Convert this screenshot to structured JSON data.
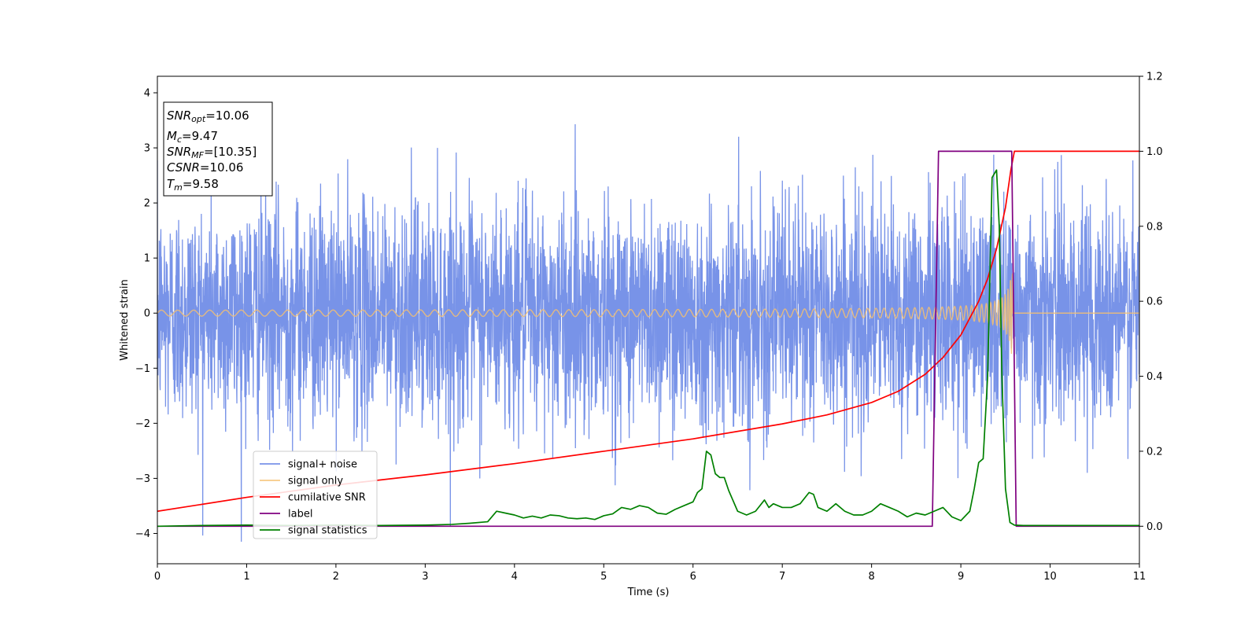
{
  "chart_data": {
    "type": "line",
    "xlabel": "Time (s)",
    "ylabel": "Whitened strain",
    "xlim": [
      0,
      11
    ],
    "ylim": [
      -4.55,
      4.3
    ],
    "y2lim": [
      -0.1,
      1.2
    ],
    "xticks": [
      "0",
      "1",
      "2",
      "3",
      "4",
      "5",
      "6",
      "7",
      "8",
      "9",
      "10",
      "11"
    ],
    "yticks": [
      "4",
      "3",
      "2",
      "1",
      "0",
      "−1",
      "−2",
      "−3",
      "−4"
    ],
    "y2ticks": [
      "0.0",
      "0.2",
      "0.4",
      "0.6",
      "0.8",
      "1.0",
      "1.2"
    ],
    "grid": false,
    "legend_position": "lower-left",
    "annotation": {
      "snr_opt": {
        "base": "SNR",
        "sub": "opt",
        "value": "=10.06"
      },
      "mc": {
        "base": "M",
        "sub": "c",
        "value": "=9.47"
      },
      "snr_mf": {
        "base": "SNR",
        "sub": "MF",
        "value": "=[10.35]"
      },
      "csnr": {
        "base": "CSNR",
        "sub": "",
        "value": "=10.06"
      },
      "tm": {
        "base": "T",
        "sub": "m",
        "value": "=9.58"
      }
    },
    "series": [
      {
        "name": "signal+ noise",
        "color": "#7893e8",
        "axis": "left",
        "kind": "noise",
        "sigma": 1.0,
        "t_end": 11
      },
      {
        "name": "signal only",
        "color": "#f5c070",
        "axis": "left",
        "kind": "chirp",
        "t_merge": 9.58,
        "amplitude_end": 0.75
      },
      {
        "name": "cumilative SNR",
        "color": "#ff0000",
        "axis": "right",
        "x": [
          0,
          1,
          2,
          3,
          4,
          5,
          6,
          7,
          7.5,
          8,
          8.3,
          8.6,
          8.8,
          9.0,
          9.2,
          9.3,
          9.4,
          9.5,
          9.56,
          9.6,
          11
        ],
        "y": [
          0.04,
          0.077,
          0.11,
          0.137,
          0.167,
          0.2,
          0.233,
          0.273,
          0.297,
          0.33,
          0.36,
          0.405,
          0.45,
          0.51,
          0.6,
          0.66,
          0.74,
          0.85,
          0.95,
          1.0,
          1.0
        ]
      },
      {
        "name": "label",
        "color": "#800080",
        "axis": "right",
        "x": [
          0,
          8.68,
          8.75,
          9.57,
          9.62,
          11
        ],
        "y": [
          0,
          0,
          1,
          1,
          0,
          0
        ]
      },
      {
        "name": "signal statistics",
        "color": "#008000",
        "axis": "right",
        "x": [
          0,
          0.5,
          1,
          1.5,
          2,
          2.5,
          3,
          3.3,
          3.5,
          3.7,
          3.8,
          3.9,
          4.0,
          4.1,
          4.2,
          4.3,
          4.4,
          4.5,
          4.6,
          4.7,
          4.8,
          4.9,
          5.0,
          5.1,
          5.2,
          5.3,
          5.4,
          5.5,
          5.6,
          5.7,
          5.8,
          5.9,
          6.0,
          6.05,
          6.1,
          6.15,
          6.2,
          6.25,
          6.3,
          6.35,
          6.4,
          6.5,
          6.6,
          6.7,
          6.8,
          6.85,
          6.9,
          7.0,
          7.1,
          7.2,
          7.3,
          7.35,
          7.4,
          7.5,
          7.6,
          7.7,
          7.8,
          7.9,
          8.0,
          8.1,
          8.2,
          8.3,
          8.4,
          8.5,
          8.6,
          8.7,
          8.8,
          8.9,
          9.0,
          9.1,
          9.15,
          9.2,
          9.25,
          9.3,
          9.35,
          9.4,
          9.43,
          9.46,
          9.5,
          9.55,
          9.6,
          9.7,
          11
        ],
        "y": [
          0,
          0.002,
          0.003,
          0.002,
          0.003,
          0.002,
          0.003,
          0.005,
          0.008,
          0.012,
          0.04,
          0.035,
          0.03,
          0.022,
          0.027,
          0.022,
          0.03,
          0.028,
          0.022,
          0.02,
          0.022,
          0.018,
          0.028,
          0.033,
          0.05,
          0.045,
          0.055,
          0.05,
          0.035,
          0.032,
          0.045,
          0.055,
          0.065,
          0.09,
          0.1,
          0.2,
          0.19,
          0.14,
          0.13,
          0.13,
          0.095,
          0.04,
          0.03,
          0.04,
          0.07,
          0.05,
          0.06,
          0.05,
          0.05,
          0.06,
          0.09,
          0.085,
          0.05,
          0.04,
          0.06,
          0.04,
          0.03,
          0.03,
          0.04,
          0.06,
          0.05,
          0.04,
          0.025,
          0.035,
          0.03,
          0.04,
          0.05,
          0.025,
          0.015,
          0.04,
          0.1,
          0.17,
          0.18,
          0.4,
          0.93,
          0.95,
          0.8,
          0.4,
          0.1,
          0.01,
          0.003,
          0.002,
          0.002
        ]
      }
    ]
  }
}
